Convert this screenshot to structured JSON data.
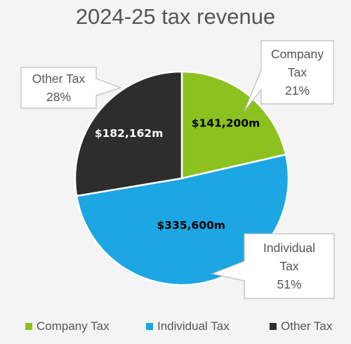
{
  "chart_data": {
    "type": "pie",
    "title": "2024-25 tax revenue",
    "start_angle_deg": 0,
    "direction": "clockwise",
    "slices": [
      {
        "name": "Company Tax",
        "value": 141200,
        "value_label": "$141,200m",
        "percent_label": "21%",
        "callout_lines": [
          "Company",
          "Tax",
          "21%"
        ],
        "color": "#8cc21f",
        "value_label_color": "#000000"
      },
      {
        "name": "Individual Tax",
        "value": 335600,
        "value_label": "$335,600m",
        "percent_label": "51%",
        "callout_lines": [
          "Individual",
          "Tax",
          "51%"
        ],
        "color": "#1ca6e4",
        "value_label_color": "#000000"
      },
      {
        "name": "Other Tax",
        "value": 182162,
        "value_label": "$182,162m",
        "percent_label": "28%",
        "callout_lines": [
          "Other Tax",
          "28%"
        ],
        "color": "#2d2d2d",
        "value_label_color": "#ffffff"
      }
    ],
    "legend": {
      "placement": "bottom",
      "entries": [
        "Company Tax",
        "Individual Tax",
        "Other Tax"
      ]
    }
  }
}
